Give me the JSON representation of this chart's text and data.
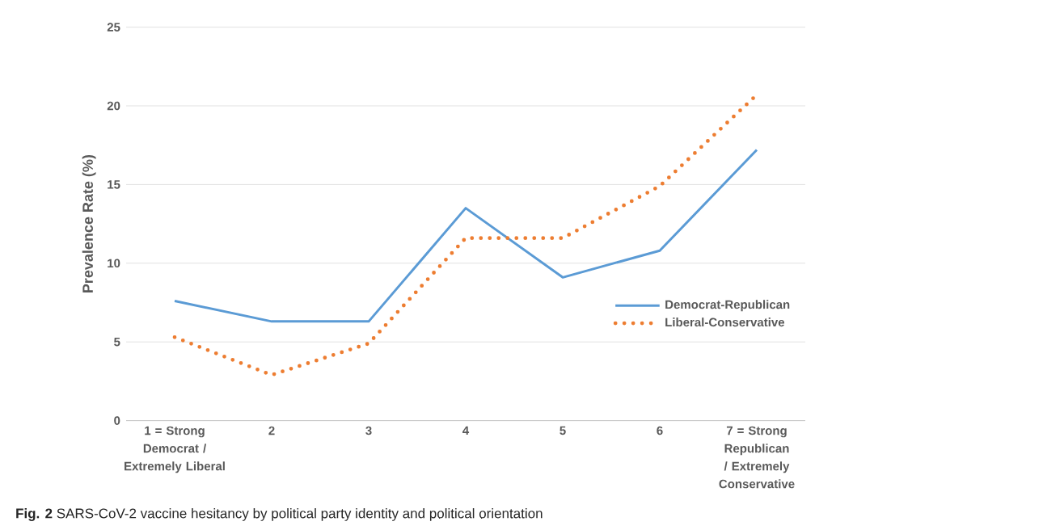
{
  "chart_data": {
    "type": "line",
    "title": "**Fig. 2** SARS-CoV-2 vaccine hesitancy by political party identity and political orientation",
    "ylabel": "Prevalence Rate (%)",
    "categories": [
      "1 = Strong Democrat / Extremely Liberal",
      "2",
      "3",
      "4",
      "5",
      "6",
      "7 = Strong Republican / Extremely Conservative"
    ],
    "series": [
      {
        "name": "Democrat-Republican",
        "color": "#5b9bd5",
        "line_style": "solid",
        "values": [
          7.6,
          6.3,
          6.3,
          13.5,
          9.1,
          10.8,
          17.2
        ]
      },
      {
        "name": "Liberal-Conservative",
        "color": "#ed7d31",
        "line_style": "dotted",
        "values": [
          5.3,
          2.9,
          4.9,
          11.6,
          11.6,
          14.9,
          20.7
        ]
      }
    ],
    "ylim": [
      0,
      25
    ],
    "yticks": [
      0,
      5,
      10,
      15,
      20,
      25
    ],
    "grid": "y",
    "legend": "right",
    "marker": "none"
  }
}
